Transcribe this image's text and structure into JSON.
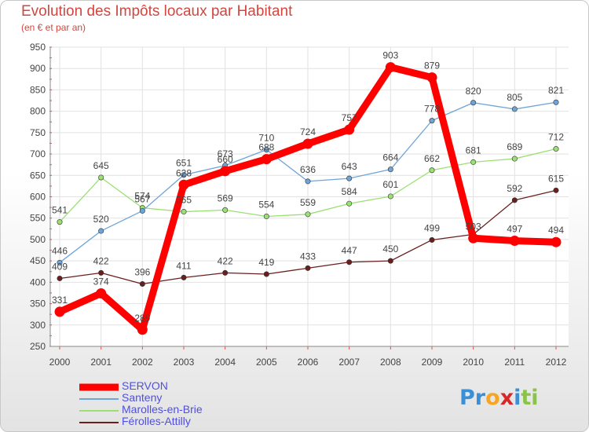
{
  "chart_data": {
    "type": "line",
    "title": "Evolution des Impôts locaux par Habitant",
    "subtitle": "(en € et par an)",
    "categories": [
      "2000",
      "2001",
      "2002",
      "2003",
      "2004",
      "2005",
      "2006",
      "2007",
      "2008",
      "2009",
      "2010",
      "2011",
      "2012"
    ],
    "ylim": [
      250,
      950
    ],
    "yticks": [
      "250",
      "300",
      "350",
      "400",
      "450",
      "500",
      "550",
      "600",
      "650",
      "700",
      "750",
      "800",
      "850",
      "900",
      "950"
    ],
    "grid": true,
    "legend_position": "bottom-left",
    "series": [
      {
        "name": "Férolles-Attilly",
        "color": "#6b1e1e",
        "values": [
          409,
          422,
          396,
          411,
          422,
          419,
          433,
          447,
          450,
          499,
          512,
          592,
          615
        ],
        "labels": [
          "409",
          "422",
          "396",
          "411",
          "422",
          "419",
          "433",
          "447",
          "450",
          "499",
          "",
          "592",
          "615"
        ]
      },
      {
        "name": "Marolles-en-Brie",
        "color": "#9be072",
        "values": [
          541,
          645,
          574,
          565,
          569,
          554,
          559,
          584,
          601,
          662,
          681,
          689,
          712
        ],
        "labels": [
          "541",
          "645",
          "574",
          "565",
          "569",
          "554",
          "559",
          "584",
          "601",
          "662",
          "681",
          "689",
          "712"
        ]
      },
      {
        "name": "Santeny",
        "color": "#6ea4d8",
        "values": [
          446,
          520,
          567,
          651,
          673,
          710,
          636,
          643,
          664,
          778,
          820,
          805,
          821
        ],
        "labels": [
          "446",
          "520",
          "567",
          "651",
          "673",
          "710",
          "636",
          "643",
          "664",
          "778",
          "820",
          "805",
          "821"
        ]
      },
      {
        "name": "SERVON",
        "color": "#ff0000",
        "values": [
          331,
          374,
          289,
          628,
          660,
          688,
          724,
          757,
          903,
          879,
          503,
          497,
          494
        ],
        "labels": [
          "331",
          "374",
          "289",
          "628",
          "660",
          "688",
          "724",
          "757",
          "903",
          "879",
          "503",
          "497",
          "494"
        ]
      }
    ],
    "legend_order": [
      "SERVON",
      "Santeny",
      "Marolles-en-Brie",
      "Férolles-Attilly"
    ]
  },
  "legend": {
    "items": [
      {
        "label": "SERVON",
        "color": "#ff0000",
        "text_color": "#4f4fe0"
      },
      {
        "label": "Santeny",
        "color": "#6ea4d8",
        "text_color": "#4f4fe0"
      },
      {
        "label": "Marolles-en-Brie",
        "color": "#9be072",
        "text_color": "#4f4fe0"
      },
      {
        "label": "Férolles-Attilly",
        "color": "#6b1e1e",
        "text_color": "#4f4fe0"
      }
    ]
  },
  "logo": {
    "letters": [
      "P",
      "r",
      "o",
      "x",
      "i",
      "t",
      "i"
    ],
    "colors": [
      "#3b8fd6",
      "#3b8fd6",
      "#f5a623",
      "#d62828",
      "#3b8fd6",
      "#8bc34a",
      "#8bc34a"
    ]
  }
}
